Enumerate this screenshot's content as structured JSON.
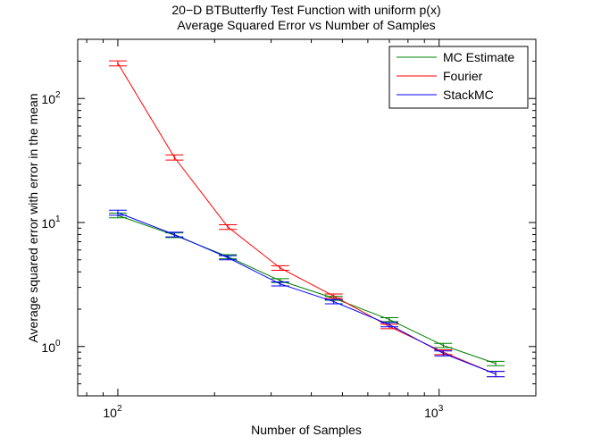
{
  "chart_data": {
    "type": "line",
    "title_line1": "20−D BTButterfly Test Function with uniform p(x)",
    "title_line2": "Average Squared Error vs Number of Samples",
    "xlabel": "Number of Samples",
    "ylabel": "Average squared error with error in the mean",
    "xscale": "log",
    "yscale": "log",
    "xlim": [
      75,
      2000
    ],
    "ylim": [
      0.4,
      300
    ],
    "x_ticks": [
      {
        "value": 100,
        "base": "10",
        "exp": "2"
      },
      {
        "value": 1000,
        "base": "10",
        "exp": "3"
      }
    ],
    "y_ticks": [
      {
        "value": 1,
        "base": "10",
        "exp": "0"
      },
      {
        "value": 10,
        "base": "10",
        "exp": "1"
      },
      {
        "value": 100,
        "base": "10",
        "exp": "2"
      }
    ],
    "legend_position": "top-right",
    "x": [
      100,
      150,
      220,
      320,
      470,
      700,
      1030,
      1500
    ],
    "series": [
      {
        "name": "MC Estimate",
        "color": "#008000",
        "values": [
          11.4,
          7.9,
          5.3,
          3.4,
          2.45,
          1.65,
          1.02,
          0.73
        ],
        "error": [
          0.5,
          0.35,
          0.2,
          0.12,
          0.09,
          0.06,
          0.04,
          0.03
        ]
      },
      {
        "name": "Fourier",
        "color": "#ff0000",
        "values": [
          192,
          33.5,
          9.2,
          4.3,
          2.55,
          1.45,
          0.9,
          0.6
        ],
        "error": [
          9,
          1.6,
          0.4,
          0.18,
          0.1,
          0.06,
          0.04,
          0.03
        ]
      },
      {
        "name": "StackMC",
        "color": "#0000ff",
        "values": [
          12.0,
          8.0,
          5.2,
          3.2,
          2.3,
          1.5,
          0.88,
          0.6
        ],
        "error": [
          0.55,
          0.35,
          0.2,
          0.12,
          0.09,
          0.06,
          0.04,
          0.03
        ]
      }
    ]
  }
}
